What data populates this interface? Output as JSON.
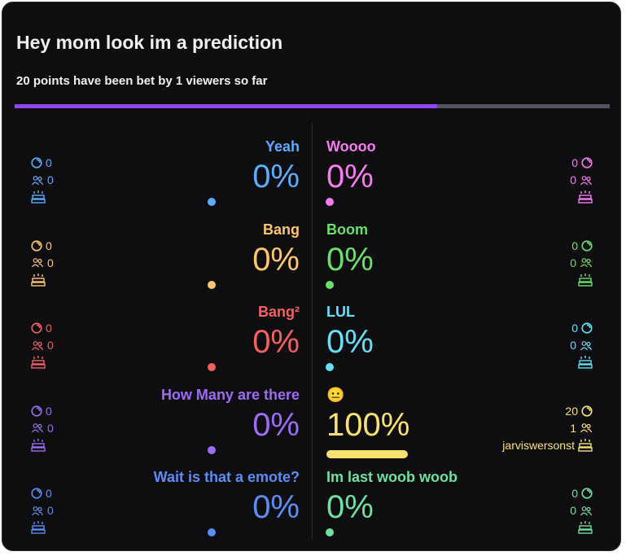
{
  "prediction": {
    "title": "Hey mom look im a prediction",
    "summary": "20 points have been bet by 1 viewers so far",
    "progress_fraction": 0.71,
    "progress_color": "#9147ff"
  },
  "outcomes": [
    {
      "side": "left",
      "label": "Yeah",
      "percent": "0%",
      "percent_value": 0,
      "points": "0",
      "users": "0",
      "top_predictor": "",
      "color": "#5cacff"
    },
    {
      "side": "right",
      "label": "Woooo",
      "percent": "0%",
      "percent_value": 0,
      "points": "0",
      "users": "0",
      "top_predictor": "",
      "color": "#f67cf0"
    },
    {
      "side": "left",
      "label": "Bang",
      "percent": "0%",
      "percent_value": 0,
      "points": "0",
      "users": "0",
      "top_predictor": "",
      "color": "#ffc66c"
    },
    {
      "side": "right",
      "label": "Boom",
      "percent": "0%",
      "percent_value": 0,
      "points": "0",
      "users": "0",
      "top_predictor": "",
      "color": "#6ae06a"
    },
    {
      "side": "left",
      "label": "Bang²",
      "percent": "0%",
      "percent_value": 0,
      "points": "0",
      "users": "0",
      "top_predictor": "",
      "color": "#f46060"
    },
    {
      "side": "right",
      "label": "LUL",
      "percent": "0%",
      "percent_value": 0,
      "points": "0",
      "users": "0",
      "top_predictor": "",
      "color": "#63e0f6"
    },
    {
      "side": "left",
      "label": "How Many are there",
      "percent": "0%",
      "percent_value": 0,
      "points": "0",
      "users": "0",
      "top_predictor": "",
      "color": "#9c6cf4"
    },
    {
      "side": "right",
      "label": "😐",
      "percent": "100%",
      "percent_value": 100,
      "points": "20",
      "users": "1",
      "top_predictor": "jarviswersonst",
      "color": "#f7e36b"
    },
    {
      "side": "left",
      "label": "Wait is that a emote?",
      "percent": "0%",
      "percent_value": 0,
      "points": "0",
      "users": "0",
      "top_predictor": "",
      "color": "#5c8cf4"
    },
    {
      "side": "right",
      "label": "Im last woob woob",
      "percent": "0%",
      "percent_value": 0,
      "points": "0",
      "users": "0",
      "top_predictor": "",
      "color": "#6ee0a0"
    }
  ]
}
